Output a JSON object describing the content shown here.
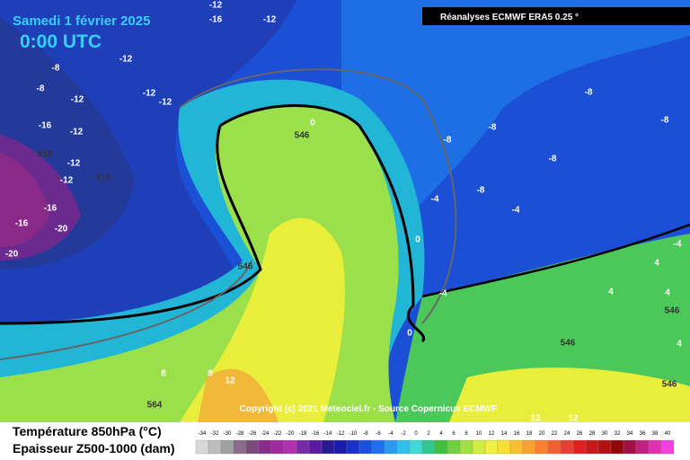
{
  "header": {
    "title": "Samedi 1 février 2025",
    "time": "0:00 UTC",
    "source": "Réanalyses ECMWF ERA5 0.25 °",
    "copyright": "Copyright (c) 2021 Meteociel.fr - Source Copernicus ECMWF"
  },
  "legend": {
    "temperature_label": "Température 850hPa (°C)",
    "thickness_label": "Epaisseur Z500-1000 (dam)",
    "scale": [
      -34,
      -32,
      -30,
      -28,
      -26,
      -24,
      -22,
      -20,
      -18,
      -16,
      -14,
      -12,
      -10,
      -8,
      -6,
      -4,
      -2,
      0,
      2,
      4,
      6,
      8,
      10,
      12,
      14,
      16,
      18,
      20,
      22,
      24,
      26,
      28,
      30,
      32,
      34,
      36,
      38,
      40
    ]
  },
  "map": {
    "contour_labels": [
      -12,
      -12,
      -16,
      -12,
      -8,
      -8,
      -12,
      -12,
      -12,
      -16,
      -12,
      -12,
      -16,
      -20,
      -20,
      -16,
      -12,
      -8,
      -8,
      -8,
      -8,
      -8,
      -8,
      -4,
      -4,
      -4,
      0,
      0,
      -4,
      0,
      4,
      4,
      4,
      4,
      8,
      8,
      12,
      12,
      12
    ],
    "thickness_labels": [
      510,
      510,
      546,
      546,
      546,
      546,
      546,
      564
    ]
  }
}
